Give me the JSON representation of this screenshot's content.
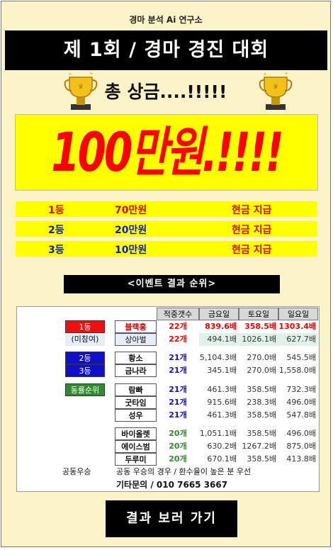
{
  "header": {
    "org": "경마 분석 Ai 연구소",
    "title": "제 1회  /  경마 경진 대회"
  },
  "prize": {
    "label": "총 상금....!!!!!",
    "amount": "100만원.!!!!"
  },
  "ranks": [
    {
      "rank": "1등",
      "amount": "70만원",
      "note": "현금 지급"
    },
    {
      "rank": "2등",
      "amount": "20만원",
      "note": "현금 지급"
    },
    {
      "rank": "3등",
      "amount": "10만원",
      "note": "현금 지급"
    }
  ],
  "event_results_label": "<이벤트 결과 순위>",
  "table": {
    "headers": [
      "적중갯수",
      "금요일",
      "토요일",
      "일요일"
    ],
    "badges": {
      "first": "1등",
      "first_note": "(미참여)",
      "second": "2등",
      "third": "3등",
      "tie": "동률순위"
    },
    "rows": [
      {
        "name": "블랙홍",
        "count": "22개",
        "fri": "839.6배",
        "sat": "358.5배",
        "sun": "1303.4배"
      },
      {
        "name": "상아벌",
        "count": "22개",
        "fri": "494.1배",
        "sat": "1026.1배",
        "sun": "627.7배"
      },
      {
        "name": "황소",
        "count": "21개",
        "fri": "5,104.3배",
        "sat": "270.0배",
        "sun": "545.5배"
      },
      {
        "name": "금나라",
        "count": "21개",
        "fri": "345.1배",
        "sat": "270.0배",
        "sun": "1,558.0배"
      },
      {
        "name": "람빠",
        "count": "21개",
        "fri": "461.3배",
        "sat": "358.5배",
        "sun": "732.3배"
      },
      {
        "name": "굿타임",
        "count": "21개",
        "fri": "915.6배",
        "sat": "238.3배",
        "sun": "496.0배"
      },
      {
        "name": "성우",
        "count": "21개",
        "fri": "461.3배",
        "sat": "358.5배",
        "sun": "547.8배"
      },
      {
        "name": "바이올렛",
        "count": "20개",
        "fri": "1,051.1배",
        "sat": "358.5배",
        "sun": "496.0배"
      },
      {
        "name": "에이스범",
        "count": "20개",
        "fri": "630.2배",
        "sat": "1267.2배",
        "sun": "875.0배"
      },
      {
        "name": "두루미",
        "count": "20개",
        "fri": "670.1배",
        "sat": "358.5배",
        "sun": "413.8배"
      }
    ],
    "tie_label": "공동우승",
    "tie_rule": "공동 우승의 경우 / 환수율이 높은 분 우선",
    "contact": "기타문의 / 010 7665 3667"
  },
  "cta_label": "결과 보러 가기",
  "colors": {
    "background": "#fdf3c8",
    "highlight": "#ffff00",
    "red": "#ff0000",
    "blue": "#1020c0",
    "green": "#2e8b2e"
  },
  "icons": [
    "trophy-icon"
  ]
}
